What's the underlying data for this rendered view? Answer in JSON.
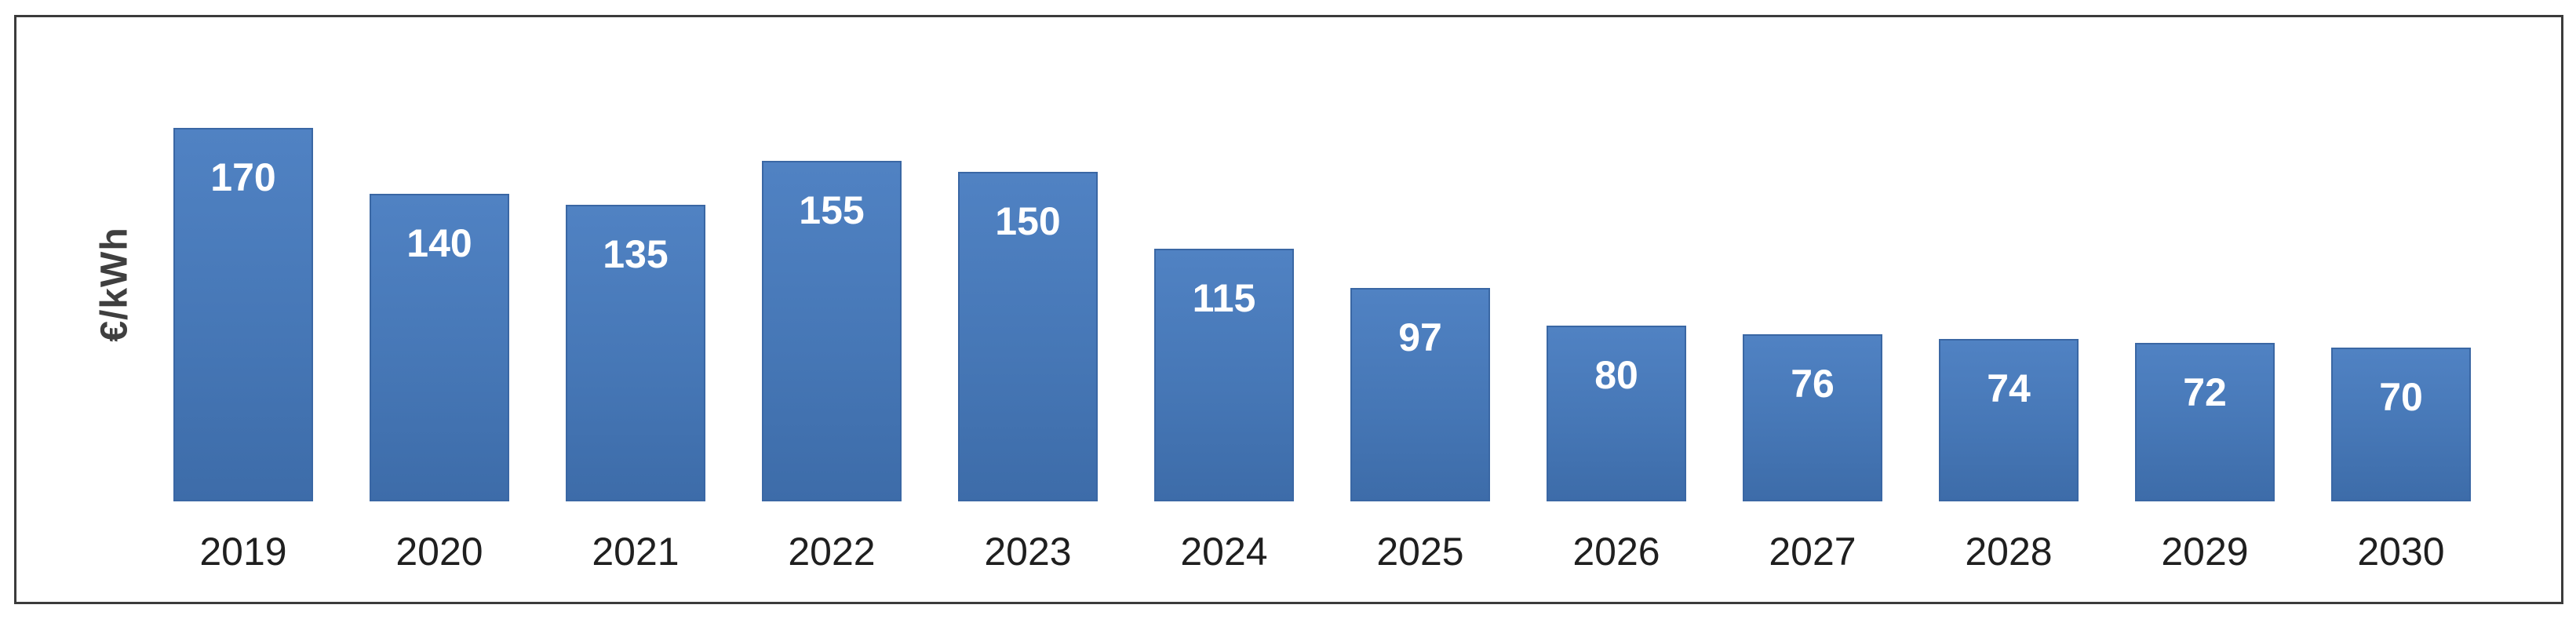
{
  "chart_data": {
    "type": "bar",
    "title": "",
    "xlabel": "",
    "ylabel": "€/kWh",
    "categories": [
      "2019",
      "2020",
      "2021",
      "2022",
      "2023",
      "2024",
      "2025",
      "2026",
      "2027",
      "2028",
      "2029",
      "2030"
    ],
    "values": [
      170,
      140,
      135,
      155,
      150,
      115,
      97,
      80,
      76,
      74,
      72,
      70
    ],
    "ylim": [
      0,
      220
    ],
    "grid": false,
    "legend": false,
    "value_label_position": "inside-top",
    "colors": {
      "bar_fill_top": "#5082c3",
      "bar_fill_mid": "#4677b6",
      "bar_fill_bottom": "#3d6ca9",
      "bar_border": "#3a67a4",
      "value_label": "#ffffff",
      "tick_label": "#1f1f1f",
      "ylabel": "#3f3f3f",
      "frame_border": "#3b3b3b",
      "background": "#ffffff"
    }
  }
}
